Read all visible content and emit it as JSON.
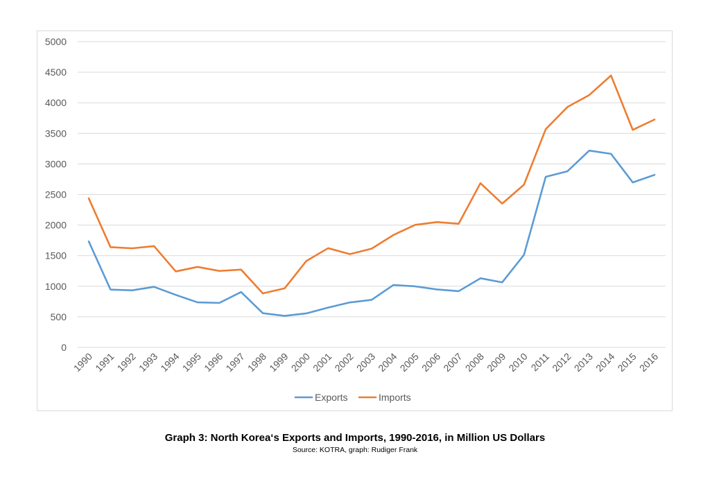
{
  "chart_data": {
    "type": "line",
    "title": "Graph 3: North Korea‘s Exports and Imports, 1990-2016, in Million US Dollars",
    "subtitle": "Source: KOTRA, graph: Rudiger Frank",
    "xlabel": "",
    "ylabel": "",
    "ylim": [
      0,
      5000
    ],
    "yticks": [
      0,
      500,
      1000,
      1500,
      2000,
      2500,
      3000,
      3500,
      4000,
      4500,
      5000
    ],
    "grid": true,
    "legend_position": "bottom",
    "categories": [
      "1990",
      "1991",
      "1992",
      "1993",
      "1994",
      "1995",
      "1996",
      "1997",
      "1998",
      "1999",
      "2000",
      "2001",
      "2002",
      "2003",
      "2004",
      "2005",
      "2006",
      "2007",
      "2008",
      "2009",
      "2010",
      "2011",
      "2012",
      "2013",
      "2014",
      "2015",
      "2016"
    ],
    "series": [
      {
        "name": "Exports",
        "color": "#5b9bd5",
        "values": [
          1733,
          945,
          933,
          990,
          858,
          736,
          727,
          905,
          559,
          515,
          556,
          650,
          735,
          777,
          1020,
          998,
          947,
          919,
          1130,
          1063,
          1513,
          2789,
          2880,
          3218,
          3165,
          2697,
          2821
        ]
      },
      {
        "name": "Imports",
        "color": "#ed7d31",
        "values": [
          2437,
          1639,
          1620,
          1656,
          1242,
          1316,
          1250,
          1272,
          883,
          965,
          1413,
          1622,
          1525,
          1614,
          1837,
          2003,
          2049,
          2022,
          2685,
          2351,
          2660,
          3568,
          3931,
          4126,
          4446,
          3556,
          3726
        ]
      }
    ]
  }
}
